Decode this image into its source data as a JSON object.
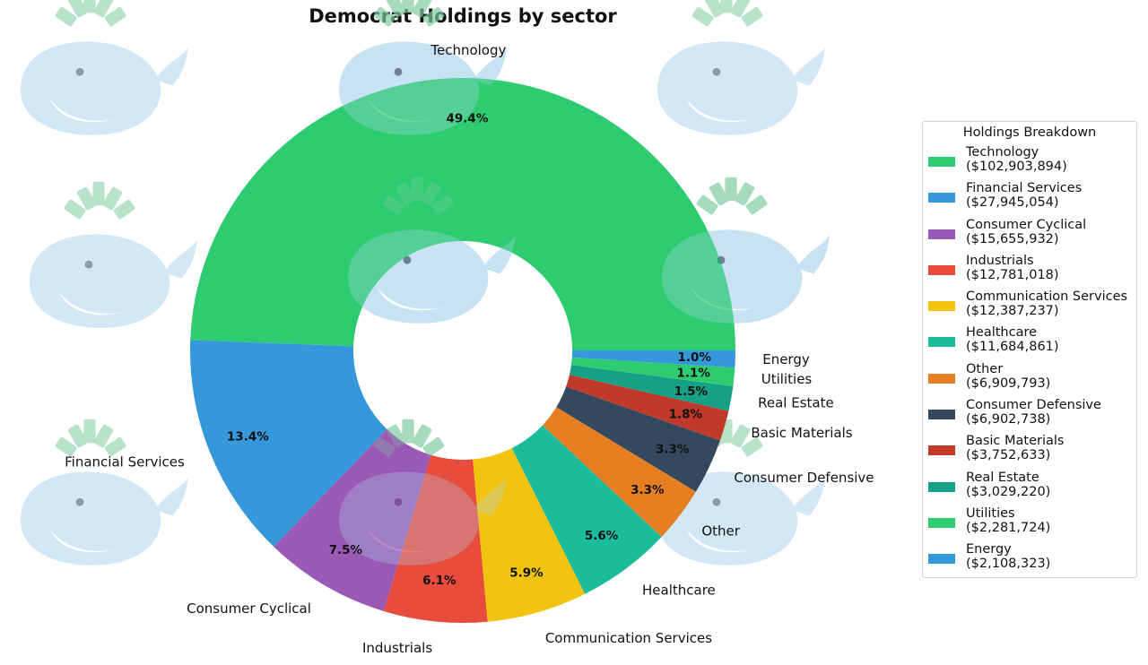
{
  "chart_data": {
    "type": "pie",
    "title": "Democrat Holdings by sector",
    "legend_title": "Holdings Breakdown",
    "legend_position": "right",
    "donut": true,
    "slices": [
      {
        "label": "Technology",
        "value": 102903894,
        "value_text": "($102,903,894)",
        "percent_text": "49.4%",
        "color": "#2ecc71"
      },
      {
        "label": "Financial Services",
        "value": 27945054,
        "value_text": "($27,945,054)",
        "percent_text": "13.4%",
        "color": "#3498db"
      },
      {
        "label": "Consumer Cyclical",
        "value": 15655932,
        "value_text": "($15,655,932)",
        "percent_text": "7.5%",
        "color": "#9b59b6"
      },
      {
        "label": "Industrials",
        "value": 12781018,
        "value_text": "($12,781,018)",
        "percent_text": "6.1%",
        "color": "#e74c3c"
      },
      {
        "label": "Communication Services",
        "value": 12387237,
        "value_text": "($12,387,237)",
        "percent_text": "5.9%",
        "color": "#f1c40f"
      },
      {
        "label": "Healthcare",
        "value": 11684861,
        "value_text": "($11,684,861)",
        "percent_text": "5.6%",
        "color": "#1abc9c"
      },
      {
        "label": "Other",
        "value": 6909793,
        "value_text": "($6,909,793)",
        "percent_text": "3.3%",
        "color": "#e67e22"
      },
      {
        "label": "Consumer Defensive",
        "value": 6902738,
        "value_text": "($6,902,738)",
        "percent_text": "3.3%",
        "color": "#34495e"
      },
      {
        "label": "Basic Materials",
        "value": 3752633,
        "value_text": "($3,752,633)",
        "percent_text": "1.8%",
        "color": "#c0392b"
      },
      {
        "label": "Real Estate",
        "value": 3029220,
        "value_text": "($3,029,220)",
        "percent_text": "1.5%",
        "color": "#16a085"
      },
      {
        "label": "Utilities",
        "value": 2281724,
        "value_text": "($2,281,724)",
        "percent_text": "1.1%",
        "color": "#2ecc71"
      },
      {
        "label": "Energy",
        "value": 2108323,
        "value_text": "($2,108,323)",
        "percent_text": "1.0%",
        "color": "#3498db"
      }
    ]
  }
}
